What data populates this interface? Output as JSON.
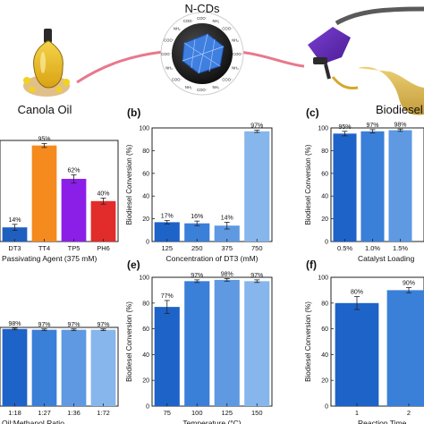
{
  "header": {
    "ncds_label": "N-CDs",
    "canola_label": "Canola Oil",
    "biodiesel_label": "Biodiesel",
    "surface_groups": [
      "COO⁻",
      "NH₂",
      "COO⁻",
      "NH₂",
      "COO⁻",
      "NH₂",
      "COO⁻",
      "NH₂",
      "COO⁻",
      "NH₂",
      "COO⁻",
      "NH₂",
      "COO⁻",
      "COO⁻",
      "NH₂",
      "COO⁻"
    ]
  },
  "colors": {
    "axis": "#222222",
    "label_text": "#111111",
    "error_bar": "#222222",
    "pink_link": "#e8788c",
    "dark_blue": "#1f5fc0"
  },
  "chart_data": [
    {
      "panel": "a",
      "type": "bar",
      "categories": [
        "DT3",
        "TT4",
        "TP5",
        "PH6"
      ],
      "values": [
        14,
        95,
        62,
        40
      ],
      "errors": [
        3,
        2,
        4,
        3
      ],
      "data_labels": [
        "14%",
        "95%",
        "62%",
        "40%"
      ],
      "bar_colors": [
        "#1f5fc0",
        "#f58a1f",
        "#8b1fe8",
        "#e22b2b"
      ],
      "xlabel": "Passivating Agent (375 mM)",
      "ylabel": "",
      "ylim": [
        0,
        100
      ],
      "yticks": []
    },
    {
      "panel": "b",
      "label": "(b)",
      "type": "bar",
      "categories": [
        "125",
        "250",
        "375",
        "750"
      ],
      "values": [
        17,
        16,
        14,
        97
      ],
      "errors": [
        1.5,
        2,
        3,
        1
      ],
      "data_labels": [
        "17%",
        "16%",
        "14%",
        "97%"
      ],
      "bar_colors": [
        "#1e63c8",
        "#3a7fd8",
        "#5e99e2",
        "#86b6ec"
      ],
      "xlabel": "Concentration of DT3 (mM)",
      "ylabel": "Biodiesel Conversion (%)",
      "ylim": [
        0,
        100
      ],
      "yticks": [
        "0",
        "20",
        "40",
        "60",
        "80",
        "100"
      ]
    },
    {
      "panel": "c",
      "label": "(c)",
      "type": "bar",
      "categories": [
        "0.5%",
        "1.0%",
        "1.5%"
      ],
      "values": [
        95,
        97,
        98
      ],
      "errors": [
        2,
        1.5,
        1
      ],
      "data_labels": [
        "95%",
        "97%",
        "98%"
      ],
      "bar_colors": [
        "#1e63c8",
        "#3a7fd8",
        "#5e99e2"
      ],
      "xlabel": "Catalyst Loading",
      "ylabel": "Biodiesel Conversion (%)",
      "ylim": [
        0,
        100
      ],
      "yticks": [
        "0",
        "20",
        "40",
        "60",
        "80",
        "100"
      ]
    },
    {
      "panel": "d",
      "type": "bar",
      "categories": [
        "1:18",
        "1:27",
        "1:36",
        "1:72"
      ],
      "values": [
        98,
        97,
        97,
        97
      ],
      "errors": [
        1,
        1,
        1,
        1
      ],
      "data_labels": [
        "98%",
        "97%",
        "97%",
        "97%"
      ],
      "bar_colors": [
        "#1e63c8",
        "#3a7fd8",
        "#5e99e2",
        "#86b6ec"
      ],
      "xlabel": "Oil:Methanol Ratio",
      "ylabel": "",
      "ylim": [
        0,
        100
      ],
      "yticks": []
    },
    {
      "panel": "e",
      "label": "(e)",
      "type": "bar",
      "categories": [
        "75",
        "100",
        "125",
        "150"
      ],
      "values": [
        77,
        97,
        98,
        97
      ],
      "errors": [
        5,
        1,
        1,
        1
      ],
      "data_labels": [
        "77%",
        "97%",
        "98%",
        "97%"
      ],
      "bar_colors": [
        "#1e63c8",
        "#3a7fd8",
        "#5e99e2",
        "#86b6ec"
      ],
      "xlabel": "Temperature (°C)",
      "ylabel": "Biodiesel Conversion (%)",
      "ylim": [
        0,
        100
      ],
      "yticks": [
        "0",
        "20",
        "40",
        "60",
        "80",
        "100"
      ]
    },
    {
      "panel": "f",
      "label": "(f)",
      "type": "bar",
      "categories": [
        "1",
        "2"
      ],
      "values": [
        80,
        90
      ],
      "errors": [
        5,
        2
      ],
      "data_labels": [
        "80%",
        "90%"
      ],
      "bar_colors": [
        "#1e63c8",
        "#3a7fd8"
      ],
      "xlabel": "Reaction Time",
      "ylabel": "Biodiesel Conversion (%)",
      "ylim": [
        0,
        100
      ],
      "yticks": [
        "0",
        "20",
        "40",
        "60",
        "80",
        "100"
      ]
    }
  ]
}
